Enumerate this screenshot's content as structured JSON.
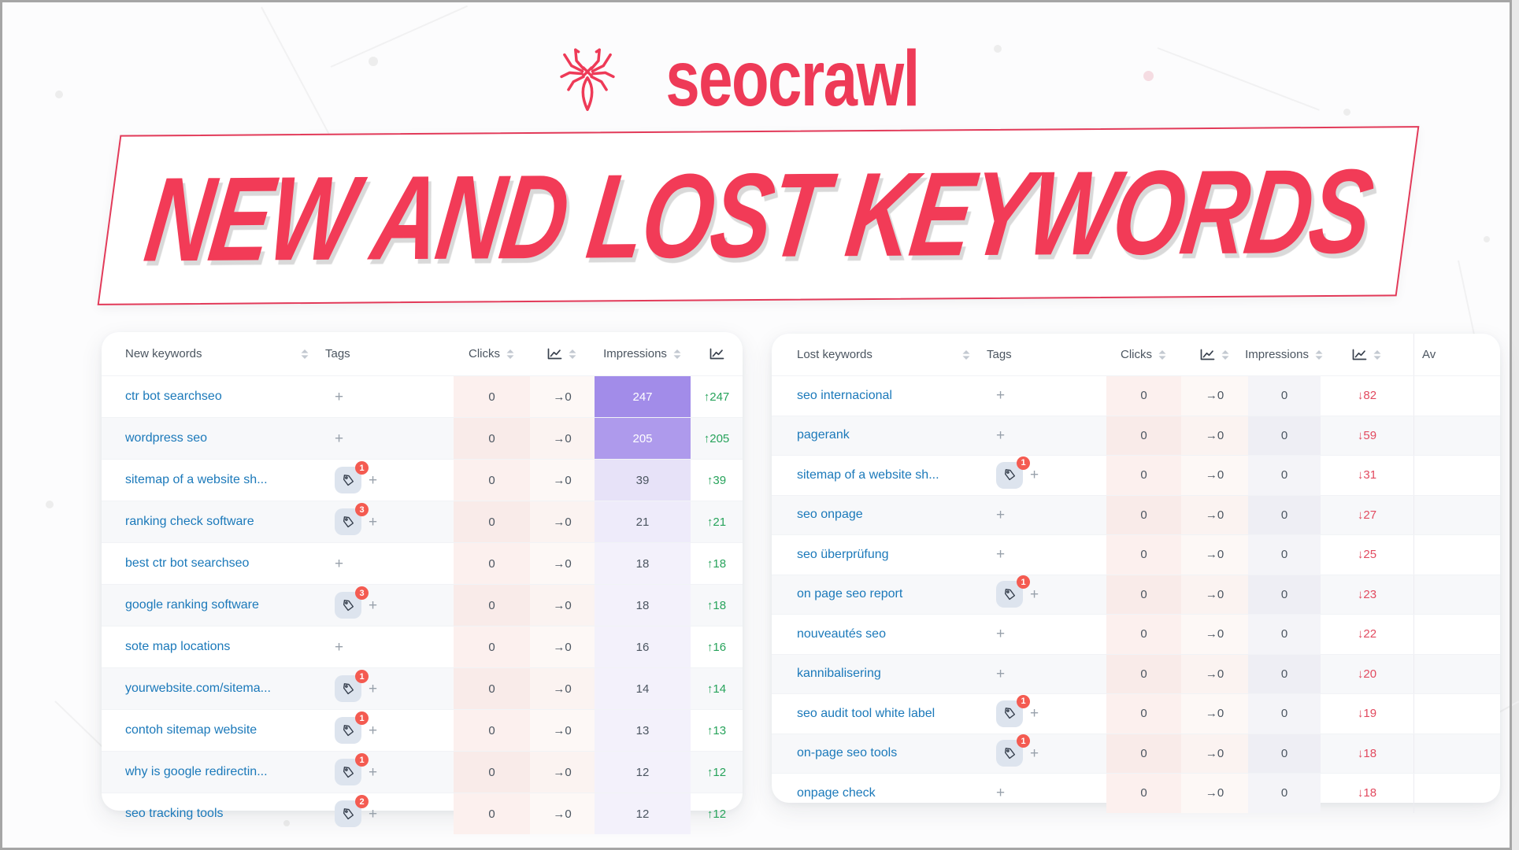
{
  "logo": {
    "brand": "seocrawl"
  },
  "banner": {
    "title": "NEW AND LOST KEYWORDS"
  },
  "colors": {
    "brand_red": "#ee3a57",
    "banner_text": "#f23b57",
    "link_blue": "#1b79ba",
    "up_green": "#27a35b",
    "down_red": "#e24a5f",
    "impressions_purple": "#a28ce9",
    "clicks_pink": "#fcf0ee",
    "tag_chip_bg": "#dde4ee",
    "badge_red": "#f45b51"
  },
  "icons": {
    "spider": "spider-logo-icon",
    "sort": "sort-arrows-icon",
    "trend_chart": "line-chart-icon",
    "tag": "tag-icon",
    "add_tag": "+",
    "up_arrow": "↑",
    "down_arrow": "↓",
    "flat_arrow": "→"
  },
  "new_table": {
    "headers": {
      "keyword": "New keywords",
      "tags": "Tags",
      "clicks": "Clicks",
      "impressions": "Impressions"
    },
    "rows": [
      {
        "keyword": "ctr bot searchseo",
        "tag_badge": null,
        "clicks": "0",
        "clicks_trend": "→0",
        "impressions": "247",
        "change": "↑247",
        "direction": "up"
      },
      {
        "keyword": "wordpress seo",
        "tag_badge": null,
        "clicks": "0",
        "clicks_trend": "→0",
        "impressions": "205",
        "change": "↑205",
        "direction": "up"
      },
      {
        "keyword": "sitemap of a website sh...",
        "tag_badge": "1",
        "clicks": "0",
        "clicks_trend": "→0",
        "impressions": "39",
        "change": "↑39",
        "direction": "up"
      },
      {
        "keyword": "ranking check software",
        "tag_badge": "3",
        "clicks": "0",
        "clicks_trend": "→0",
        "impressions": "21",
        "change": "↑21",
        "direction": "up"
      },
      {
        "keyword": "best ctr bot searchseo",
        "tag_badge": null,
        "clicks": "0",
        "clicks_trend": "→0",
        "impressions": "18",
        "change": "↑18",
        "direction": "up"
      },
      {
        "keyword": "google ranking software",
        "tag_badge": "3",
        "clicks": "0",
        "clicks_trend": "→0",
        "impressions": "18",
        "change": "↑18",
        "direction": "up"
      },
      {
        "keyword": "sote map locations",
        "tag_badge": null,
        "clicks": "0",
        "clicks_trend": "→0",
        "impressions": "16",
        "change": "↑16",
        "direction": "up"
      },
      {
        "keyword": "yourwebsite.com/sitema...",
        "tag_badge": "1",
        "clicks": "0",
        "clicks_trend": "→0",
        "impressions": "14",
        "change": "↑14",
        "direction": "up"
      },
      {
        "keyword": "contoh sitemap website",
        "tag_badge": "1",
        "clicks": "0",
        "clicks_trend": "→0",
        "impressions": "13",
        "change": "↑13",
        "direction": "up"
      },
      {
        "keyword": "why is google redirectin...",
        "tag_badge": "1",
        "clicks": "0",
        "clicks_trend": "→0",
        "impressions": "12",
        "change": "↑12",
        "direction": "up"
      },
      {
        "keyword": "seo tracking tools",
        "tag_badge": "2",
        "clicks": "0",
        "clicks_trend": "→0",
        "impressions": "12",
        "change": "↑12",
        "direction": "up"
      }
    ]
  },
  "lost_table": {
    "headers": {
      "keyword": "Lost keywords",
      "tags": "Tags",
      "clicks": "Clicks",
      "impressions": "Impressions",
      "extra": "Av"
    },
    "rows": [
      {
        "keyword": "seo internacional",
        "tag_badge": null,
        "clicks": "0",
        "clicks_trend": "→0",
        "impressions": "0",
        "change": "↓82",
        "direction": "down"
      },
      {
        "keyword": "pagerank",
        "tag_badge": null,
        "clicks": "0",
        "clicks_trend": "→0",
        "impressions": "0",
        "change": "↓59",
        "direction": "down"
      },
      {
        "keyword": "sitemap of a website sh...",
        "tag_badge": "1",
        "clicks": "0",
        "clicks_trend": "→0",
        "impressions": "0",
        "change": "↓31",
        "direction": "down"
      },
      {
        "keyword": "seo onpage",
        "tag_badge": null,
        "clicks": "0",
        "clicks_trend": "→0",
        "impressions": "0",
        "change": "↓27",
        "direction": "down"
      },
      {
        "keyword": "seo überprüfung",
        "tag_badge": null,
        "clicks": "0",
        "clicks_trend": "→0",
        "impressions": "0",
        "change": "↓25",
        "direction": "down"
      },
      {
        "keyword": "on page seo report",
        "tag_badge": "1",
        "clicks": "0",
        "clicks_trend": "→0",
        "impressions": "0",
        "change": "↓23",
        "direction": "down"
      },
      {
        "keyword": "nouveautés seo",
        "tag_badge": null,
        "clicks": "0",
        "clicks_trend": "→0",
        "impressions": "0",
        "change": "↓22",
        "direction": "down"
      },
      {
        "keyword": "kannibalisering",
        "tag_badge": null,
        "clicks": "0",
        "clicks_trend": "→0",
        "impressions": "0",
        "change": "↓20",
        "direction": "down"
      },
      {
        "keyword": "seo audit tool white label",
        "tag_badge": "1",
        "clicks": "0",
        "clicks_trend": "→0",
        "impressions": "0",
        "change": "↓19",
        "direction": "down"
      },
      {
        "keyword": "on-page seo tools",
        "tag_badge": "1",
        "clicks": "0",
        "clicks_trend": "→0",
        "impressions": "0",
        "change": "↓18",
        "direction": "down"
      },
      {
        "keyword": "onpage check",
        "tag_badge": null,
        "clicks": "0",
        "clicks_trend": "→0",
        "impressions": "0",
        "change": "↓18",
        "direction": "down"
      }
    ]
  }
}
